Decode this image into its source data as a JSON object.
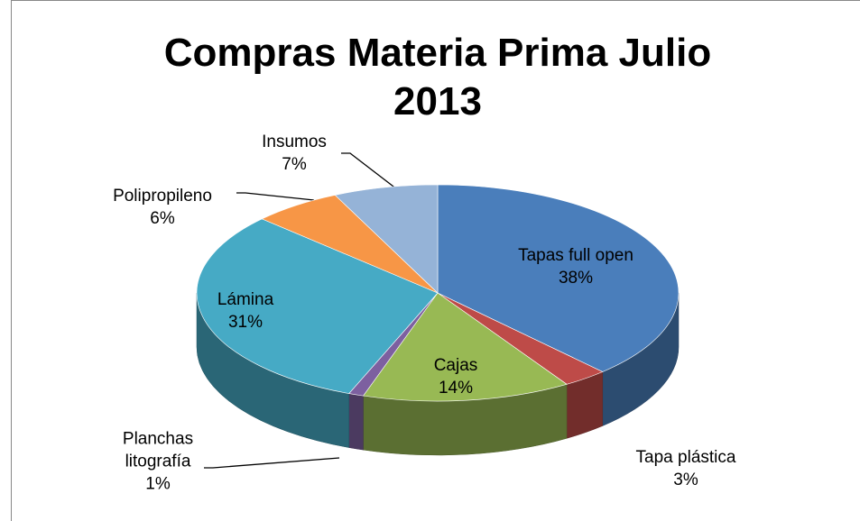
{
  "chart_data": {
    "type": "pie3d",
    "title": "Compras  Materia Prima Julio 2013",
    "categories": [
      "Tapas full open",
      "Tapa plástica",
      "Cajas",
      "Planchas litografía",
      "Lámina",
      "Polipropileno",
      "Insumos"
    ],
    "values": [
      38,
      3,
      14,
      1,
      31,
      6,
      7
    ],
    "value_labels": [
      "38%",
      "3%",
      "14%",
      "1%",
      "31%",
      "6%",
      "7%"
    ],
    "colors": [
      "#4a7ebb",
      "#be4b48",
      "#98b954",
      "#7d60a0",
      "#46aac5",
      "#f79646",
      "#95b3d7"
    ]
  }
}
